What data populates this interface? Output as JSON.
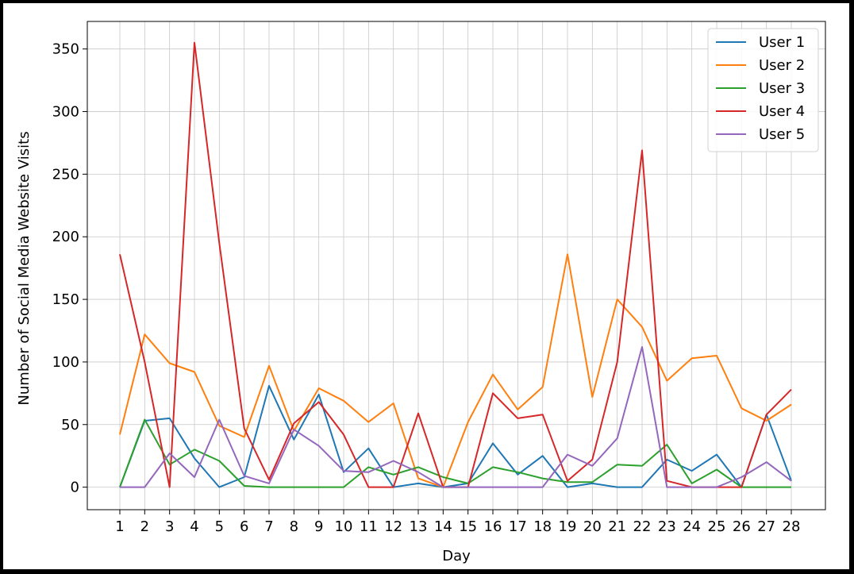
{
  "chart_data": {
    "type": "line",
    "title": "",
    "xlabel": "Day",
    "ylabel": "Number of Social Media Website Visits",
    "x": [
      1,
      2,
      3,
      4,
      5,
      6,
      7,
      8,
      9,
      10,
      11,
      12,
      13,
      14,
      15,
      16,
      17,
      18,
      19,
      20,
      21,
      22,
      23,
      24,
      25,
      26,
      27,
      28
    ],
    "ylim": [
      -18,
      372
    ],
    "yticks": [
      0,
      50,
      100,
      150,
      200,
      250,
      300,
      350
    ],
    "grid": true,
    "legend_position": "top-right",
    "series": [
      {
        "name": "User 1",
        "color": "#1f77b4",
        "values": [
          0,
          53,
          55,
          23,
          0,
          8,
          81,
          38,
          74,
          12,
          31,
          0,
          3,
          0,
          3,
          35,
          10,
          25,
          0,
          3,
          0,
          0,
          22,
          13,
          26,
          0,
          58,
          5
        ]
      },
      {
        "name": "User 2",
        "color": "#ff7f0e",
        "values": [
          42,
          122,
          99,
          92,
          49,
          40,
          97,
          45,
          79,
          69,
          52,
          67,
          7,
          0,
          52,
          90,
          62,
          80,
          186,
          72,
          150,
          128,
          85,
          103,
          105,
          63,
          53,
          66
        ]
      },
      {
        "name": "User 3",
        "color": "#2ca02c",
        "values": [
          0,
          54,
          18,
          30,
          21,
          1,
          0,
          0,
          0,
          0,
          16,
          10,
          16,
          8,
          3,
          16,
          12,
          7,
          4,
          4,
          18,
          17,
          34,
          3,
          14,
          0,
          0,
          0
        ]
      },
      {
        "name": "User 4",
        "color": "#d62728",
        "values": [
          186,
          100,
          0,
          355,
          195,
          47,
          6,
          51,
          68,
          42,
          0,
          0,
          59,
          0,
          0,
          75,
          55,
          58,
          5,
          22,
          100,
          269,
          5,
          0,
          0,
          0,
          58,
          78
        ]
      },
      {
        "name": "User 5",
        "color": "#9467bd",
        "values": [
          0,
          0,
          27,
          8,
          54,
          9,
          3,
          46,
          33,
          13,
          12,
          21,
          12,
          0,
          0,
          0,
          0,
          0,
          26,
          17,
          39,
          112,
          0,
          0,
          0,
          8,
          20,
          5
        ]
      }
    ]
  }
}
